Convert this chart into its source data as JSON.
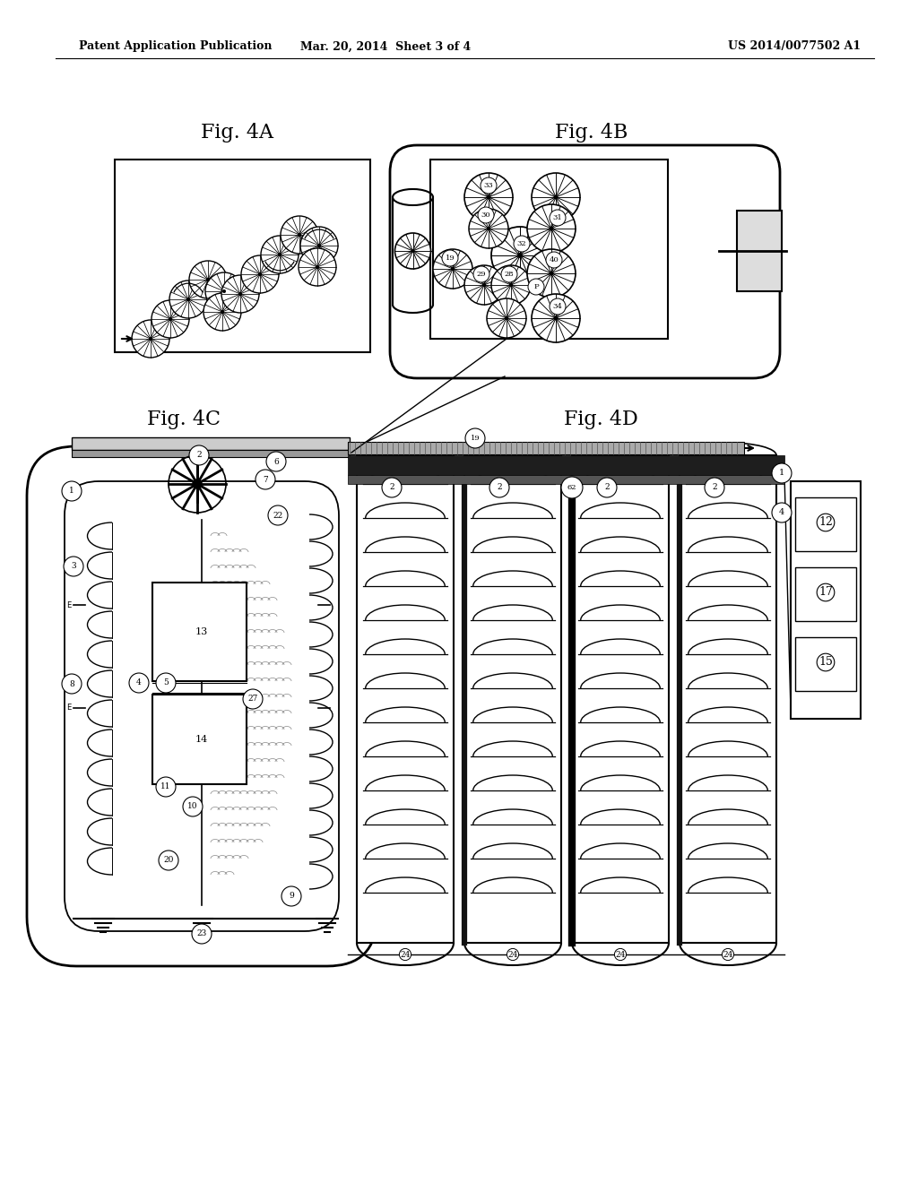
{
  "bg_color": "#ffffff",
  "header_left": "Patent Application Publication",
  "header_mid": "Mar. 20, 2014  Sheet 3 of 4",
  "header_right": "US 2014/0077502 A1",
  "fig4A_label": "Fig. 4A",
  "fig4B_label": "Fig. 4B",
  "fig4C_label": "Fig. 4C",
  "fig4D_label": "Fig. 4D",
  "lc": "#000000",
  "gc": "#888888",
  "darkgray": "#333333",
  "midgray": "#666666",
  "lightgray": "#bbbbbb"
}
